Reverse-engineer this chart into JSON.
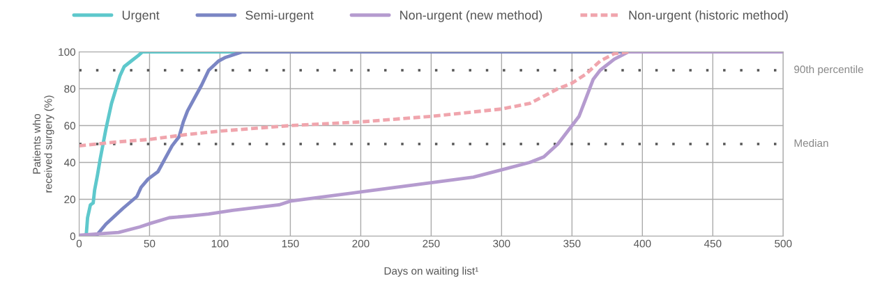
{
  "chart_data": {
    "type": "line",
    "xlabel": "Days on waiting list¹",
    "ylabel": "Patients who\nreceived surgery (%)",
    "xlim": [
      0,
      500
    ],
    "ylim": [
      0,
      100
    ],
    "xticks": [
      0,
      50,
      100,
      150,
      200,
      250,
      300,
      350,
      400,
      450,
      500
    ],
    "yticks": [
      0,
      20,
      40,
      60,
      80,
      100
    ],
    "grid": true,
    "legend": "top",
    "marker": "none",
    "series": [
      {
        "name": "Urgent",
        "color": "#5ec8cc",
        "line_style": "solid",
        "x": [
          0,
          5,
          6,
          8,
          10,
          11,
          13,
          15,
          17,
          19,
          21,
          23,
          25,
          27,
          29,
          32,
          37,
          42,
          45,
          112
        ],
        "values": [
          0,
          0,
          10,
          17,
          18,
          25,
          33,
          42,
          50,
          58,
          65,
          72,
          77,
          82,
          87,
          92,
          95,
          98,
          100,
          100
        ]
      },
      {
        "name": "Semi-urgent",
        "color": "#7b86c4",
        "line_style": "solid",
        "x": [
          0,
          13,
          19,
          31,
          41,
          44,
          49,
          56,
          61,
          66,
          71,
          74,
          77,
          82,
          87,
          92,
          99,
          104,
          116,
          500
        ],
        "values": [
          0,
          1,
          6.5,
          15,
          21.5,
          26.5,
          31,
          35,
          42,
          49,
          54,
          62,
          68,
          75,
          82,
          90,
          95,
          97,
          100,
          100
        ]
      },
      {
        "name": "Non-urgent (new method)",
        "color": "#b59bcf",
        "line_style": "solid",
        "x": [
          0,
          28,
          43,
          51,
          64,
          79,
          92,
          109,
          142,
          150,
          200,
          250,
          280,
          300,
          320,
          330,
          340,
          350,
          355,
          360,
          365,
          370,
          380,
          390,
          500
        ],
        "values": [
          0.5,
          2,
          5,
          7,
          10,
          11,
          12,
          14,
          17,
          19,
          24,
          29,
          32,
          36,
          40,
          43,
          50,
          60,
          65,
          75,
          85,
          90,
          96,
          100,
          100
        ]
      },
      {
        "name": "Non-urgent (historic method)",
        "color": "#f0a5ad",
        "line_style": "dashed",
        "x": [
          0,
          25,
          50,
          75,
          100,
          150,
          200,
          250,
          300,
          320,
          340,
          350,
          360,
          370,
          380,
          390
        ],
        "values": [
          49,
          51,
          52.5,
          55,
          57,
          60,
          62,
          65,
          69,
          72,
          80,
          83,
          88,
          95,
          99,
          100
        ]
      }
    ],
    "ref_lines": [
      {
        "axis": "y",
        "value": 90,
        "label": "90th percentile",
        "color": "#555555",
        "line_style": "dotted"
      },
      {
        "axis": "y",
        "value": 50,
        "label": "Median",
        "color": "#555555",
        "line_style": "dotted"
      }
    ]
  }
}
